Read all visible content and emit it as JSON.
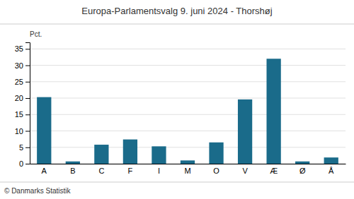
{
  "chart_data": {
    "type": "bar",
    "title": "Europa-Parlamentsvalg 9. juni 2024 - Thorshøj",
    "ylabel": "Pct.",
    "footer": "© Danmarks Statistik",
    "categories": [
      "A",
      "B",
      "C",
      "F",
      "I",
      "M",
      "O",
      "V",
      "Æ",
      "Ø",
      "Å"
    ],
    "values": [
      20.3,
      0.7,
      5.8,
      7.4,
      5.3,
      1.0,
      6.5,
      19.6,
      32.0,
      0.7,
      1.9
    ],
    "color": "#1a6b8a",
    "ylim": [
      0,
      37
    ],
    "yticks": [
      0,
      5,
      10,
      15,
      20,
      25,
      30,
      35
    ],
    "grid": true
  }
}
